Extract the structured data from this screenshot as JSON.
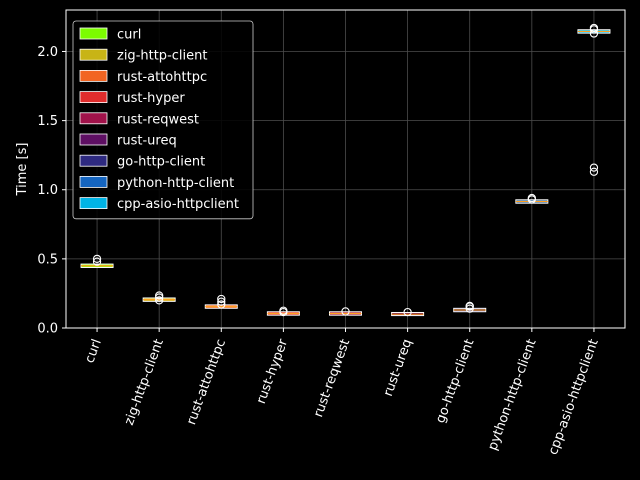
{
  "chart_data": {
    "type": "box",
    "ylabel": "Time [s]",
    "ylim": [
      0.0,
      2.3
    ],
    "yticks": [
      "0.0",
      "0.5",
      "1.0",
      "1.5",
      "2.0"
    ],
    "grid": true,
    "legend_position": "upper-left",
    "background": "#000000",
    "series": [
      {
        "name": "curl",
        "color": "#7CFC00",
        "median": 0.45,
        "q1": 0.445,
        "q3": 0.455,
        "whisker_low": 0.44,
        "whisker_high": 0.46,
        "outliers": [
          0.48,
          0.5
        ]
      },
      {
        "name": "zig-http-client",
        "color": "#C8B416",
        "median": 0.205,
        "q1": 0.2,
        "q3": 0.21,
        "whisker_low": 0.198,
        "whisker_high": 0.215,
        "outliers": [
          0.2,
          0.22,
          0.235
        ]
      },
      {
        "name": "rust-attohttpc",
        "color": "#F26522",
        "median": 0.155,
        "q1": 0.15,
        "q3": 0.16,
        "whisker_low": 0.148,
        "whisker_high": 0.165,
        "outliers": [
          0.17,
          0.19,
          0.21
        ]
      },
      {
        "name": "rust-hyper",
        "color": "#E02C2C",
        "median": 0.105,
        "q1": 0.1,
        "q3": 0.11,
        "whisker_low": 0.098,
        "whisker_high": 0.112,
        "outliers": [
          0.115,
          0.125
        ]
      },
      {
        "name": "rust-reqwest",
        "color": "#A0124A",
        "median": 0.105,
        "q1": 0.1,
        "q3": 0.11,
        "whisker_low": 0.098,
        "whisker_high": 0.112,
        "outliers": [
          0.12
        ]
      },
      {
        "name": "rust-ureq",
        "color": "#5E0F63",
        "median": 0.1,
        "q1": 0.097,
        "q3": 0.105,
        "whisker_low": 0.095,
        "whisker_high": 0.108,
        "outliers": [
          0.115
        ]
      },
      {
        "name": "go-http-client",
        "color": "#2E2A80",
        "median": 0.13,
        "q1": 0.125,
        "q3": 0.135,
        "whisker_low": 0.122,
        "whisker_high": 0.138,
        "outliers": [
          0.14,
          0.155,
          0.16
        ]
      },
      {
        "name": "python-http-client",
        "color": "#1565C0",
        "median": 0.915,
        "q1": 0.91,
        "q3": 0.92,
        "whisker_low": 0.905,
        "whisker_high": 0.925,
        "outliers": [
          0.93,
          0.94
        ]
      },
      {
        "name": "cpp-asio-httpclient",
        "color": "#00B4E6",
        "median": 2.145,
        "q1": 2.14,
        "q3": 2.15,
        "whisker_low": 2.135,
        "whisker_high": 2.155,
        "outliers": [
          1.13,
          1.16,
          2.13,
          2.16,
          2.17
        ]
      }
    ]
  }
}
